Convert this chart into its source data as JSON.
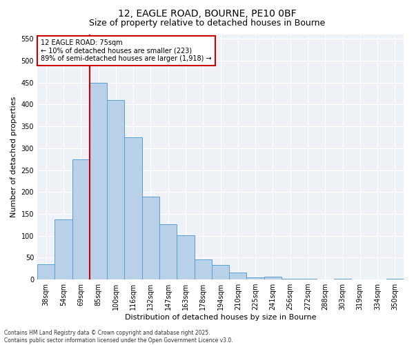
{
  "title1": "12, EAGLE ROAD, BOURNE, PE10 0BF",
  "title2": "Size of property relative to detached houses in Bourne",
  "xlabel": "Distribution of detached houses by size in Bourne",
  "ylabel": "Number of detached properties",
  "bar_labels": [
    "38sqm",
    "54sqm",
    "69sqm",
    "85sqm",
    "100sqm",
    "116sqm",
    "132sqm",
    "147sqm",
    "163sqm",
    "178sqm",
    "194sqm",
    "210sqm",
    "225sqm",
    "241sqm",
    "256sqm",
    "272sqm",
    "288sqm",
    "303sqm",
    "319sqm",
    "334sqm",
    "350sqm"
  ],
  "bar_values": [
    35,
    137,
    275,
    450,
    410,
    325,
    190,
    126,
    101,
    46,
    33,
    16,
    5,
    7,
    2,
    1,
    0,
    2,
    0,
    0,
    2
  ],
  "bar_color": "#b8d0e8",
  "bar_edge_color": "#5a9fd4",
  "vline_color": "#cc0000",
  "annotation_text": "12 EAGLE ROAD: 75sqm\n← 10% of detached houses are smaller (223)\n89% of semi-detached houses are larger (1,918) →",
  "annotation_box_edgecolor": "#cc0000",
  "ylim": [
    0,
    560
  ],
  "yticks": [
    0,
    50,
    100,
    150,
    200,
    250,
    300,
    350,
    400,
    450,
    500,
    550
  ],
  "background_color": "#eef2f7",
  "grid_color": "#ffffff",
  "footnote": "Contains HM Land Registry data © Crown copyright and database right 2025.\nContains public sector information licensed under the Open Government Licence v3.0.",
  "title_fontsize": 10,
  "subtitle_fontsize": 9,
  "axis_label_fontsize": 8,
  "tick_fontsize": 7,
  "annotation_fontsize": 7,
  "footnote_fontsize": 5.5
}
